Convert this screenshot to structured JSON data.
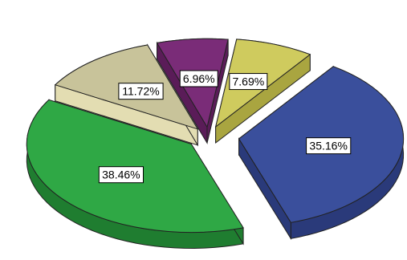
{
  "chart_data": {
    "type": "pie",
    "style": "exploded-3d",
    "legend": "none",
    "slices": [
      {
        "label": "35.16%",
        "value": 35.16,
        "color": "#3a4f9c",
        "side_color": "#2a3a7a"
      },
      {
        "label": "38.46%",
        "value": 38.46,
        "color": "#2fa845",
        "side_color": "#1f7d30"
      },
      {
        "label": "11.72%",
        "value": 11.72,
        "color": "#c8c39a",
        "side_color": "#e3ddb2"
      },
      {
        "label": "6.96%",
        "value": 6.96,
        "color": "#7a2c78",
        "side_color": "#5a1c58"
      },
      {
        "label": "7.69%",
        "value": 7.69,
        "color": "#cfcb5e",
        "side_color": "#a9a540"
      }
    ]
  }
}
